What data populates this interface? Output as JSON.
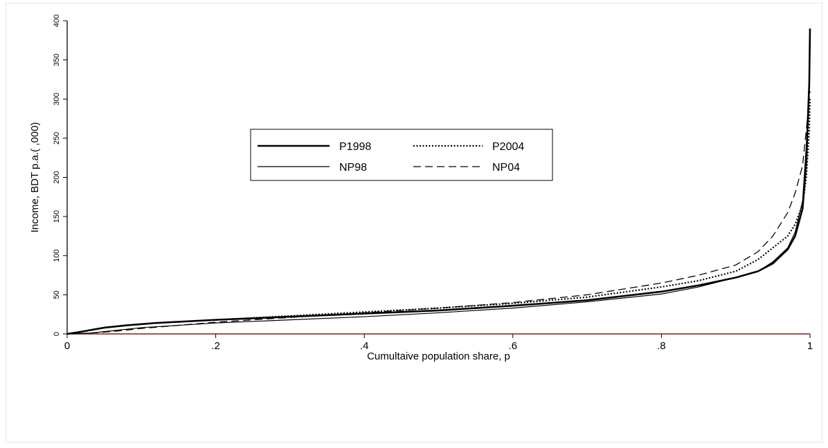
{
  "chart_data": {
    "type": "line",
    "title": "",
    "xlabel": "Cumultaive population share, p",
    "ylabel": "Income, BDT p.a.( ,000)",
    "xlim": [
      0,
      1
    ],
    "ylim": [
      0,
      400
    ],
    "x_ticks": [
      0,
      0.2,
      0.4,
      0.6,
      0.8,
      1
    ],
    "x_tick_labels": [
      "0",
      ".2",
      ".4",
      ".6",
      ".8",
      "1"
    ],
    "y_ticks": [
      0,
      50,
      100,
      150,
      200,
      250,
      300,
      350,
      400
    ],
    "y_tick_labels": [
      "0",
      "50",
      "100",
      "150",
      "200",
      "250",
      "300",
      "350",
      "400"
    ],
    "grid": false,
    "legend_position": "center-left",
    "baseline_color": "#7a1f1f",
    "series": [
      {
        "name": "P1998",
        "style": "solid-thick",
        "x": [
          0,
          0.02,
          0.05,
          0.08,
          0.12,
          0.2,
          0.3,
          0.4,
          0.5,
          0.6,
          0.7,
          0.8,
          0.85,
          0.9,
          0.93,
          0.95,
          0.97,
          0.98,
          0.99,
          0.995,
          0.999,
          1.0
        ],
        "y": [
          0,
          3,
          8,
          11,
          14,
          18,
          22,
          26,
          30,
          36,
          43,
          54,
          62,
          72,
          80,
          90,
          108,
          125,
          160,
          220,
          320,
          390
        ]
      },
      {
        "name": "P2004",
        "style": "dotted",
        "x": [
          0,
          0.02,
          0.05,
          0.08,
          0.12,
          0.2,
          0.3,
          0.4,
          0.5,
          0.6,
          0.7,
          0.8,
          0.85,
          0.9,
          0.93,
          0.95,
          0.97,
          0.98,
          0.99,
          0.995,
          0.999,
          1.0
        ],
        "y": [
          0,
          3,
          8,
          11,
          14,
          18,
          23,
          28,
          33,
          39,
          47,
          60,
          68,
          80,
          95,
          110,
          125,
          140,
          165,
          200,
          260,
          300
        ]
      },
      {
        "name": "NP98",
        "style": "solid-thin",
        "x": [
          0,
          0.03,
          0.06,
          0.1,
          0.15,
          0.2,
          0.3,
          0.4,
          0.5,
          0.6,
          0.7,
          0.8,
          0.85,
          0.9,
          0.93,
          0.95,
          0.97,
          0.98,
          0.99,
          0.995,
          0.999,
          1.0
        ],
        "y": [
          0,
          1,
          4,
          8,
          11,
          14,
          18,
          22,
          27,
          33,
          41,
          51,
          60,
          72,
          80,
          92,
          110,
          130,
          170,
          240,
          330,
          360
        ]
      },
      {
        "name": "NP04",
        "style": "dashed",
        "x": [
          0,
          0.03,
          0.06,
          0.1,
          0.15,
          0.2,
          0.3,
          0.4,
          0.5,
          0.6,
          0.7,
          0.8,
          0.85,
          0.9,
          0.93,
          0.95,
          0.97,
          0.98,
          0.99,
          0.995,
          0.999,
          1.0
        ],
        "y": [
          0,
          1,
          3,
          7,
          11,
          15,
          21,
          27,
          33,
          40,
          50,
          65,
          75,
          88,
          105,
          125,
          155,
          180,
          215,
          260,
          300,
          310
        ]
      }
    ]
  }
}
